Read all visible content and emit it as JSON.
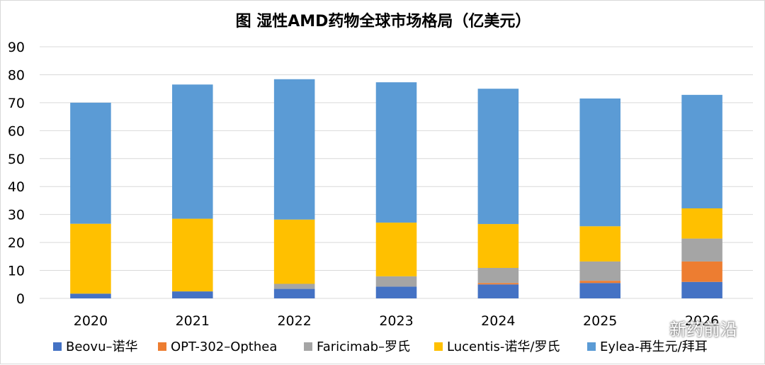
{
  "chart_data": {
    "type": "bar",
    "stacked": true,
    "title": "图 湿性AMD药物全球市场格局（亿美元）",
    "categories": [
      "2020",
      "2021",
      "2022",
      "2023",
      "2024",
      "2025",
      "2026"
    ],
    "ylim": [
      0,
      90
    ],
    "yticks": [
      0,
      10,
      20,
      30,
      40,
      50,
      60,
      70,
      80,
      90
    ],
    "grid": true,
    "legend_position": "bottom",
    "series": [
      {
        "name": "Beovu–诺华",
        "color": "#4472c4",
        "values": [
          1.7,
          2.5,
          3.4,
          4.2,
          5.0,
          5.5,
          5.9
        ]
      },
      {
        "name": "OPT-302–Opthea",
        "color": "#ed7d31",
        "values": [
          0,
          0,
          0,
          0,
          0.5,
          0.8,
          7.3
        ]
      },
      {
        "name": "Faricimab–罗氏",
        "color": "#a5a5a5",
        "values": [
          0,
          0,
          1.8,
          3.7,
          5.4,
          6.9,
          8.2
        ]
      },
      {
        "name": "Lucentis-诺华/罗氏",
        "color": "#ffc000",
        "values": [
          25.0,
          26.0,
          23.0,
          19.2,
          15.7,
          12.6,
          10.8
        ]
      },
      {
        "name": "Eylea-再生元/拜耳",
        "color": "#5b9bd5",
        "values": [
          43.3,
          48.0,
          50.2,
          50.2,
          48.4,
          45.7,
          40.6
        ]
      }
    ]
  },
  "watermark": {
    "text": "新药前沿",
    "icon": "wechat-icon"
  }
}
